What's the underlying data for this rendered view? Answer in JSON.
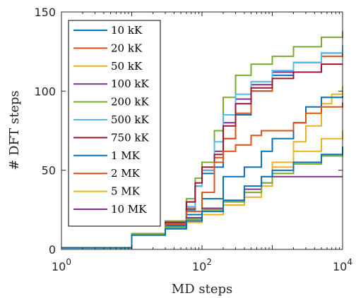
{
  "chart_data": {
    "type": "line",
    "xlabel": "MD steps",
    "ylabel": "# DFT steps",
    "x_scale": "log",
    "xlim": [
      1,
      10000
    ],
    "ylim": [
      0,
      150
    ],
    "x_ticks": [
      {
        "value": 1,
        "base": "10",
        "exp": "0"
      },
      {
        "value": 100,
        "base": "10",
        "exp": "2"
      },
      {
        "value": 10000,
        "base": "10",
        "exp": "4"
      }
    ],
    "y_ticks": [
      0,
      50,
      100,
      150
    ],
    "legend_position": "upper-left",
    "series": [
      {
        "name": "10 kK",
        "color": "#0072BD",
        "points": [
          [
            1,
            1
          ],
          [
            10,
            10
          ],
          [
            30,
            15
          ],
          [
            60,
            25
          ],
          [
            80,
            40
          ],
          [
            100,
            48
          ],
          [
            150,
            52
          ],
          [
            200,
            70
          ],
          [
            300,
            85
          ],
          [
            500,
            100
          ],
          [
            1000,
            110
          ],
          [
            2000,
            118
          ],
          [
            5000,
            124
          ],
          [
            10000,
            128
          ]
        ]
      },
      {
        "name": "20 kK",
        "color": "#D95319",
        "points": [
          [
            1,
            1
          ],
          [
            10,
            10
          ],
          [
            30,
            16
          ],
          [
            60,
            26
          ],
          [
            80,
            40
          ],
          [
            100,
            50
          ],
          [
            150,
            58
          ],
          [
            200,
            70
          ],
          [
            300,
            86
          ],
          [
            500,
            100
          ],
          [
            1000,
            112
          ],
          [
            2000,
            118
          ],
          [
            5000,
            122
          ],
          [
            10000,
            124
          ]
        ]
      },
      {
        "name": "50 kK",
        "color": "#EDB120",
        "points": [
          [
            1,
            1
          ],
          [
            10,
            9
          ],
          [
            30,
            13
          ],
          [
            60,
            18
          ],
          [
            100,
            24
          ],
          [
            200,
            28
          ],
          [
            400,
            33
          ],
          [
            700,
            40
          ],
          [
            1000,
            55
          ],
          [
            2000,
            68
          ],
          [
            3000,
            78
          ],
          [
            5000,
            92
          ],
          [
            7000,
            98
          ],
          [
            10000,
            103
          ]
        ]
      },
      {
        "name": "100 kK",
        "color": "#7E2F8E",
        "points": [
          [
            1,
            1
          ],
          [
            10,
            10
          ],
          [
            30,
            17
          ],
          [
            60,
            30
          ],
          [
            80,
            40
          ],
          [
            100,
            50
          ],
          [
            150,
            62
          ],
          [
            200,
            80
          ],
          [
            300,
            95
          ],
          [
            500,
            104
          ],
          [
            1000,
            112
          ],
          [
            2000,
            118
          ],
          [
            5000,
            124
          ],
          [
            10000,
            126
          ]
        ]
      },
      {
        "name": "200 kK",
        "color": "#77AC30",
        "points": [
          [
            1,
            1
          ],
          [
            10,
            10
          ],
          [
            30,
            18
          ],
          [
            60,
            32
          ],
          [
            80,
            45
          ],
          [
            100,
            55
          ],
          [
            150,
            75
          ],
          [
            200,
            96
          ],
          [
            300,
            110
          ],
          [
            500,
            117
          ],
          [
            1000,
            122
          ],
          [
            2000,
            128
          ],
          [
            5000,
            134
          ],
          [
            10000,
            138
          ]
        ]
      },
      {
        "name": "500 kK",
        "color": "#4DBEEE",
        "points": [
          [
            1,
            1
          ],
          [
            10,
            10
          ],
          [
            30,
            16
          ],
          [
            60,
            27
          ],
          [
            80,
            40
          ],
          [
            100,
            50
          ],
          [
            150,
            68
          ],
          [
            200,
            85
          ],
          [
            300,
            98
          ],
          [
            500,
            106
          ],
          [
            1000,
            113
          ],
          [
            2000,
            118
          ],
          [
            5000,
            124
          ],
          [
            10000,
            129
          ]
        ]
      },
      {
        "name": "750 kK",
        "color": "#A2142F",
        "points": [
          [
            1,
            1
          ],
          [
            10,
            10
          ],
          [
            30,
            17
          ],
          [
            60,
            30
          ],
          [
            80,
            42
          ],
          [
            100,
            52
          ],
          [
            150,
            60
          ],
          [
            200,
            78
          ],
          [
            300,
            92
          ],
          [
            500,
            102
          ],
          [
            1000,
            108
          ],
          [
            2000,
            112
          ],
          [
            5000,
            117
          ],
          [
            10000,
            117
          ]
        ]
      },
      {
        "name": "1 MK",
        "color": "#0072BD",
        "points": [
          [
            1,
            1
          ],
          [
            10,
            10
          ],
          [
            30,
            15
          ],
          [
            60,
            22
          ],
          [
            100,
            32
          ],
          [
            200,
            46
          ],
          [
            400,
            52
          ],
          [
            700,
            62
          ],
          [
            1000,
            70
          ],
          [
            2000,
            80
          ],
          [
            3000,
            90
          ],
          [
            5000,
            96
          ],
          [
            10000,
            97
          ]
        ]
      },
      {
        "name": "2 MK",
        "color": "#D95319",
        "points": [
          [
            1,
            1
          ],
          [
            10,
            10
          ],
          [
            30,
            16
          ],
          [
            60,
            24
          ],
          [
            100,
            36
          ],
          [
            150,
            55
          ],
          [
            200,
            62
          ],
          [
            300,
            66
          ],
          [
            500,
            72
          ],
          [
            700,
            75
          ],
          [
            1000,
            75
          ],
          [
            2000,
            80
          ],
          [
            3000,
            86
          ],
          [
            5000,
            90
          ],
          [
            10000,
            93
          ]
        ]
      },
      {
        "name": "5 MK",
        "color": "#EDB120",
        "points": [
          [
            1,
            1
          ],
          [
            10,
            10
          ],
          [
            30,
            13
          ],
          [
            60,
            17
          ],
          [
            100,
            22
          ],
          [
            200,
            28
          ],
          [
            400,
            36
          ],
          [
            700,
            46
          ],
          [
            1000,
            52
          ],
          [
            2000,
            62
          ],
          [
            5000,
            70
          ],
          [
            10000,
            75
          ]
        ]
      },
      {
        "name": "10 MK",
        "color": "#7E2F8E",
        "points": [
          [
            1,
            1
          ],
          [
            10,
            10
          ],
          [
            30,
            14
          ],
          [
            60,
            20
          ],
          [
            100,
            26
          ],
          [
            200,
            31
          ],
          [
            400,
            38
          ],
          [
            700,
            42
          ],
          [
            1000,
            46
          ],
          [
            2000,
            46
          ],
          [
            5000,
            46
          ],
          [
            10000,
            46
          ]
        ]
      },
      {
        "name": "",
        "color": "#77AC30",
        "points": [
          [
            1,
            1
          ],
          [
            10,
            10
          ],
          [
            30,
            14
          ],
          [
            60,
            19
          ],
          [
            100,
            25
          ],
          [
            200,
            30
          ],
          [
            400,
            36
          ],
          [
            700,
            42
          ],
          [
            1000,
            48
          ],
          [
            2000,
            54
          ],
          [
            5000,
            59
          ],
          [
            10000,
            62
          ]
        ]
      },
      {
        "name": "",
        "color": "#0072BD",
        "points": [
          [
            1,
            1
          ],
          [
            10,
            9
          ],
          [
            30,
            13
          ],
          [
            60,
            18
          ],
          [
            100,
            24
          ],
          [
            200,
            31
          ],
          [
            400,
            40
          ],
          [
            700,
            46
          ],
          [
            1000,
            50
          ],
          [
            2000,
            55
          ],
          [
            5000,
            60
          ],
          [
            10000,
            65
          ]
        ]
      }
    ]
  }
}
